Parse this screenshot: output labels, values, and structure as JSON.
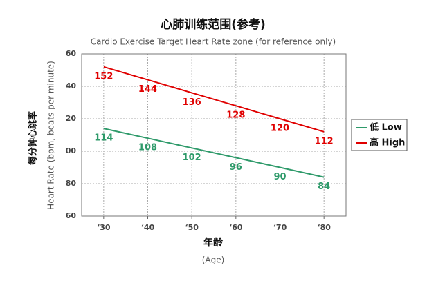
{
  "chart_data": {
    "type": "line",
    "title": "心肺训练范围(参考)",
    "subtitle": "Cardio Exercise Target Heart Rate zone (for reference only)",
    "y_label_cn": "每分钟心跳率",
    "y_label": "Heart Rate (bpm, beats per minute)",
    "x_label_cn": "年龄",
    "x_label": "(Age)",
    "categories": [
      "‘30",
      "‘40",
      "‘50",
      "‘60",
      "‘70",
      "‘80"
    ],
    "series": [
      {
        "name": "低 Low",
        "color": "#2e9a6a",
        "values": [
          114,
          108,
          102,
          96,
          90,
          84
        ]
      },
      {
        "name": "高 High",
        "color": "#e00000",
        "values": [
          152,
          144,
          136,
          128,
          120,
          112
        ]
      }
    ],
    "ylim": [
      60,
      160
    ],
    "yticks": [
      {
        "value": 160,
        "label": "60"
      },
      {
        "value": 140,
        "label": "40"
      },
      {
        "value": 120,
        "label": "20"
      },
      {
        "value": 100,
        "label": "00"
      },
      80,
      60
    ],
    "grid": true,
    "legend": "right"
  }
}
